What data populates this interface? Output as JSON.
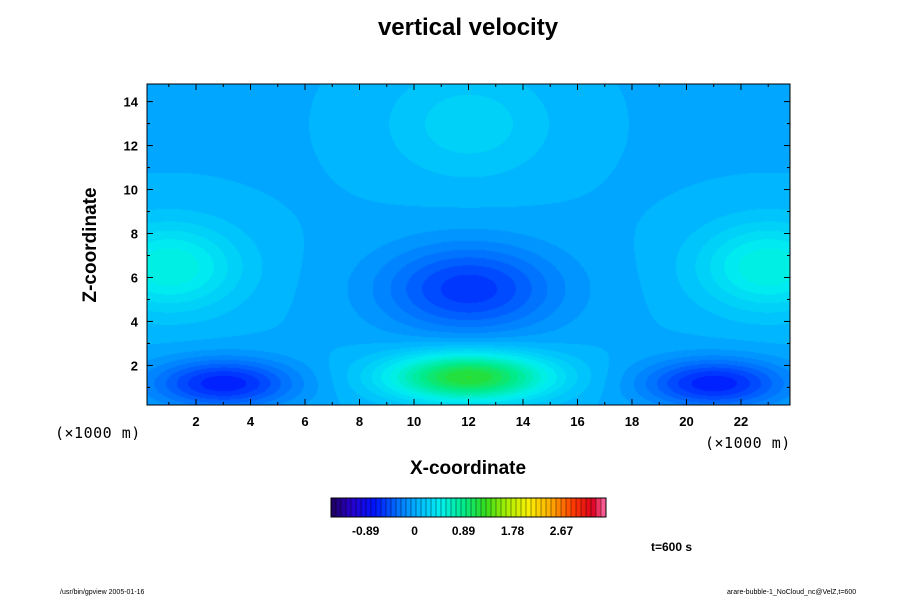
{
  "chart_data": {
    "type": "heatmap",
    "title": "vertical velocity",
    "xlabel": "X-coordinate",
    "ylabel": "Z-coordinate",
    "x_unit": "(×1000 m)",
    "y_unit": "(×1000 m)",
    "xlim": [
      0.2,
      23.8
    ],
    "ylim": [
      0.2,
      14.8
    ],
    "xticks": [
      2,
      4,
      6,
      8,
      10,
      12,
      14,
      16,
      18,
      20,
      22
    ],
    "yticks": [
      2,
      4,
      6,
      8,
      10,
      12,
      14
    ],
    "colorbar": {
      "ticks": [
        "-0.89",
        "0",
        "0.89",
        "1.78",
        "2.67"
      ],
      "tick_values": [
        -0.89,
        0,
        0.89,
        1.78,
        2.67
      ],
      "range": [
        -1.52,
        3.48
      ]
    },
    "features": [
      {
        "kind": "max",
        "x": 12,
        "z": 1.5,
        "value": 1.2
      },
      {
        "kind": "min",
        "x": 12,
        "z": 5.5,
        "value": -0.6
      },
      {
        "kind": "min",
        "x": 3,
        "z": 1.2,
        "value": -0.7
      },
      {
        "kind": "min",
        "x": 21,
        "z": 1.2,
        "value": -0.7
      },
      {
        "kind": "max",
        "x": 1,
        "z": 6.5,
        "value": 0.55
      },
      {
        "kind": "max",
        "x": 23,
        "z": 6.5,
        "value": 0.55
      },
      {
        "kind": "max",
        "x": 12,
        "z": 13,
        "value": 0.25
      }
    ],
    "time_label": "t=600 s"
  },
  "footer": {
    "left": "/usr/bin/gpview 2005-01-16",
    "right": "arare-bubble-1_NoCloud_nc@VelZ,t=600"
  }
}
